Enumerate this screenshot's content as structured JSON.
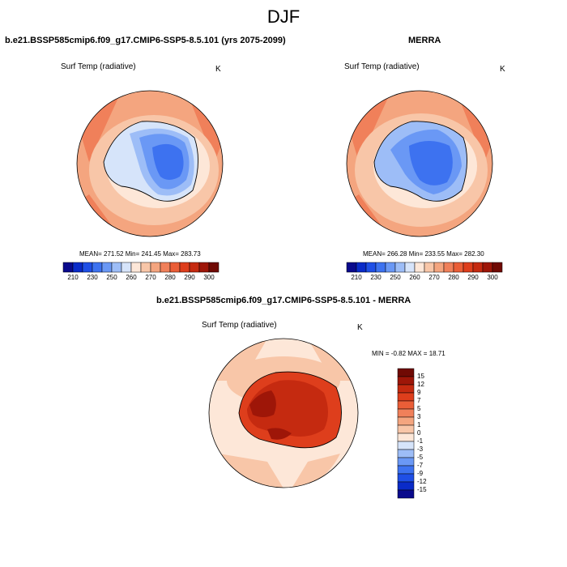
{
  "title": "DJF",
  "panels": [
    {
      "id": "model",
      "title": "b.e21.BSSP585cmip6.f09_g17.CMIP6-SSP5-8.5.101 (yrs 2075-2099)",
      "variable": "Surf Temp (radiative)",
      "units": "K",
      "stats": "MEAN= 271.52  Min= 241.45  Max= 283.73"
    },
    {
      "id": "obs",
      "title": "MERRA",
      "variable": "Surf Temp (radiative)",
      "units": "K",
      "stats": "MEAN= 266.28  Min= 233.55  Max= 282.30"
    },
    {
      "id": "diff",
      "title": "b.e21.BSSP585cmip6.f09_g17.CMIP6-SSP5-8.5.101 - MERRA",
      "variable": "Surf Temp (radiative)",
      "units": "K",
      "stats": "MIN =  -0.82 MAX =  18.71"
    }
  ],
  "colorbar_abs": {
    "colors": [
      "#0a0a8c",
      "#0a2bc8",
      "#1f4fe6",
      "#3d72f0",
      "#6a98f5",
      "#9dbdf7",
      "#d6e4fa",
      "#fde7d8",
      "#f8c6a8",
      "#f4a57f",
      "#f0805a",
      "#ea5e37",
      "#de3e1c",
      "#c52a10",
      "#9e1608",
      "#700a04"
    ],
    "labels": [
      "210",
      "230",
      "250",
      "260",
      "270",
      "280",
      "290",
      "300"
    ]
  },
  "colorbar_diff": {
    "colors": [
      "#0a0a8c",
      "#0a2bc8",
      "#1f4fe6",
      "#3d72f0",
      "#6a98f5",
      "#9dbdf7",
      "#d6e4fa",
      "#fde7d8",
      "#f8c6a8",
      "#f4a57f",
      "#f0805a",
      "#ea5e37",
      "#de3e1c",
      "#c52a10",
      "#9e1608",
      "#700a04"
    ],
    "labels": [
      "15",
      "12",
      "9",
      "7",
      "5",
      "3",
      "1",
      "0",
      "-1",
      "-3",
      "-5",
      "-7",
      "-9",
      "-12",
      "-15"
    ]
  },
  "map_colors": {
    "ocean_warm": "#f4a57f",
    "ocean_mid": "#f8c6a8",
    "ocean_pale": "#fde7d8",
    "ocean_red": "#f0805a",
    "ice_light": "#d6e4fa",
    "ice_mid": "#9dbdf7",
    "ice_blue": "#6a98f5",
    "ice_deep": "#3d72f0",
    "diff_ocean": "#fde7d8",
    "diff_ocean2": "#f8c6a8",
    "diff_land": "#de3e1c",
    "diff_land2": "#c52a10",
    "diff_land3": "#9e1608"
  }
}
